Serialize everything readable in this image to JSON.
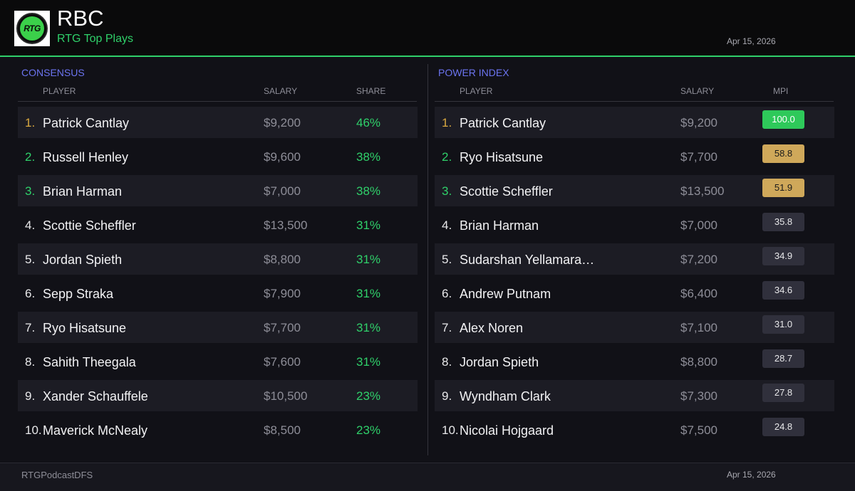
{
  "header": {
    "title": "RBC",
    "subtitle": "RTG Top Plays",
    "date": "Apr 15, 2026",
    "logo_text": "RTG"
  },
  "colors": {
    "accent_green": "#2fd06a",
    "panel_title_blue": "#6b74f0",
    "rank_gold": "#d9a840",
    "mpi_top_green": "#2ec95a",
    "mpi_tan": "#cfa85a",
    "mpi_default": "#30303c"
  },
  "consensus": {
    "title": "CONSENSUS",
    "columns": [
      "PLAYER",
      "SALARY",
      "SHARE"
    ],
    "rows": [
      {
        "rank": "1.",
        "name": "Patrick Cantlay",
        "salary": "$9,200",
        "share": "46%",
        "rank_style": "gold"
      },
      {
        "rank": "2.",
        "name": "Russell Henley",
        "salary": "$9,600",
        "share": "38%",
        "rank_style": "green"
      },
      {
        "rank": "3.",
        "name": "Brian Harman",
        "salary": "$7,000",
        "share": "38%",
        "rank_style": "green"
      },
      {
        "rank": "4.",
        "name": "Scottie Scheffler",
        "salary": "$13,500",
        "share": "31%",
        "rank_style": "plain"
      },
      {
        "rank": "5.",
        "name": "Jordan Spieth",
        "salary": "$8,800",
        "share": "31%",
        "rank_style": "plain"
      },
      {
        "rank": "6.",
        "name": "Sepp Straka",
        "salary": "$7,900",
        "share": "31%",
        "rank_style": "plain"
      },
      {
        "rank": "7.",
        "name": "Ryo Hisatsune",
        "salary": "$7,700",
        "share": "31%",
        "rank_style": "plain"
      },
      {
        "rank": "8.",
        "name": "Sahith Theegala",
        "salary": "$7,600",
        "share": "31%",
        "rank_style": "plain"
      },
      {
        "rank": "9.",
        "name": "Xander Schauffele",
        "salary": "$10,500",
        "share": "23%",
        "rank_style": "plain"
      },
      {
        "rank": "10.",
        "name": "Maverick McNealy",
        "salary": "$8,500",
        "share": "23%",
        "rank_style": "plain"
      }
    ]
  },
  "power_index": {
    "title": "POWER INDEX",
    "columns": [
      "PLAYER",
      "SALARY",
      "MPI"
    ],
    "rows": [
      {
        "rank": "1.",
        "name": "Patrick Cantlay",
        "salary": "$9,200",
        "mpi": "100.0",
        "rank_style": "gold",
        "badge_style": "top"
      },
      {
        "rank": "2.",
        "name": "Ryo Hisatsune",
        "salary": "$7,700",
        "mpi": "58.8",
        "rank_style": "green",
        "badge_style": "tan"
      },
      {
        "rank": "3.",
        "name": "Scottie Scheffler",
        "salary": "$13,500",
        "mpi": "51.9",
        "rank_style": "green",
        "badge_style": "tan"
      },
      {
        "rank": "4.",
        "name": "Brian Harman",
        "salary": "$7,000",
        "mpi": "35.8",
        "rank_style": "plain",
        "badge_style": "plain"
      },
      {
        "rank": "5.",
        "name": "Sudarshan Yellamara…",
        "salary": "$7,200",
        "mpi": "34.9",
        "rank_style": "plain",
        "badge_style": "plain"
      },
      {
        "rank": "6.",
        "name": "Andrew Putnam",
        "salary": "$6,400",
        "mpi": "34.6",
        "rank_style": "plain",
        "badge_style": "plain"
      },
      {
        "rank": "7.",
        "name": "Alex Noren",
        "salary": "$7,100",
        "mpi": "31.0",
        "rank_style": "plain",
        "badge_style": "plain"
      },
      {
        "rank": "8.",
        "name": "Jordan Spieth",
        "salary": "$8,800",
        "mpi": "28.7",
        "rank_style": "plain",
        "badge_style": "plain"
      },
      {
        "rank": "9.",
        "name": "Wyndham Clark",
        "salary": "$7,300",
        "mpi": "27.8",
        "rank_style": "plain",
        "badge_style": "plain"
      },
      {
        "rank": "10.",
        "name": "Nicolai Hojgaard",
        "salary": "$7,500",
        "mpi": "24.8",
        "rank_style": "plain",
        "badge_style": "plain"
      }
    ]
  },
  "footer": {
    "handle": "RTGPodcastDFS",
    "date": "Apr 15, 2026"
  }
}
